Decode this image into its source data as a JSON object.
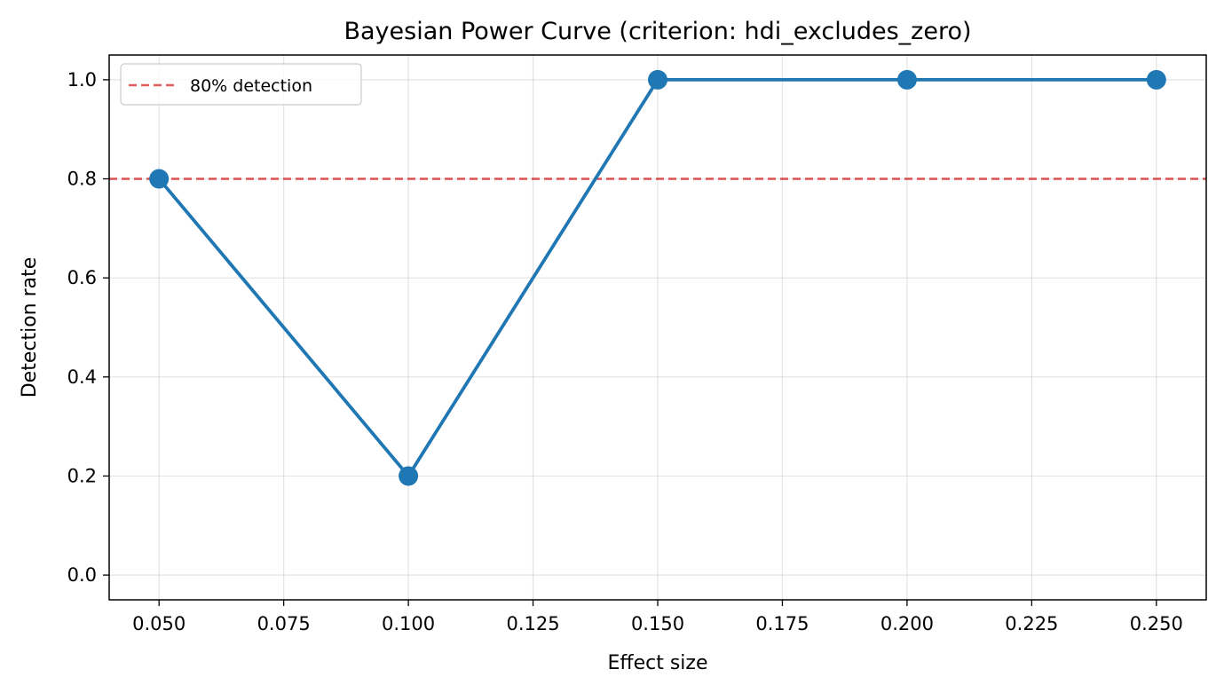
{
  "chart_data": {
    "type": "line",
    "title": "Bayesian Power Curve (criterion: hdi_excludes_zero)",
    "xlabel": "Effect size",
    "ylabel": "Detection rate",
    "xlim": [
      0.04,
      0.26
    ],
    "ylim": [
      -0.05,
      1.05
    ],
    "x_ticks": [
      "0.050",
      "0.075",
      "0.100",
      "0.125",
      "0.150",
      "0.175",
      "0.200",
      "0.225",
      "0.250"
    ],
    "y_ticks": [
      "0.0",
      "0.2",
      "0.4",
      "0.6",
      "0.8",
      "1.0"
    ],
    "grid": true,
    "legend_position": "top-left",
    "series": [
      {
        "x": [
          0.05,
          0.1,
          0.15,
          0.2,
          0.25
        ],
        "y": [
          0.8,
          0.2,
          1.0,
          1.0,
          1.0
        ],
        "color": "#1f77b4"
      }
    ],
    "reference_line": {
      "label": "80% detection",
      "y": 0.8,
      "color": "#d62728",
      "style": "dashed"
    }
  }
}
